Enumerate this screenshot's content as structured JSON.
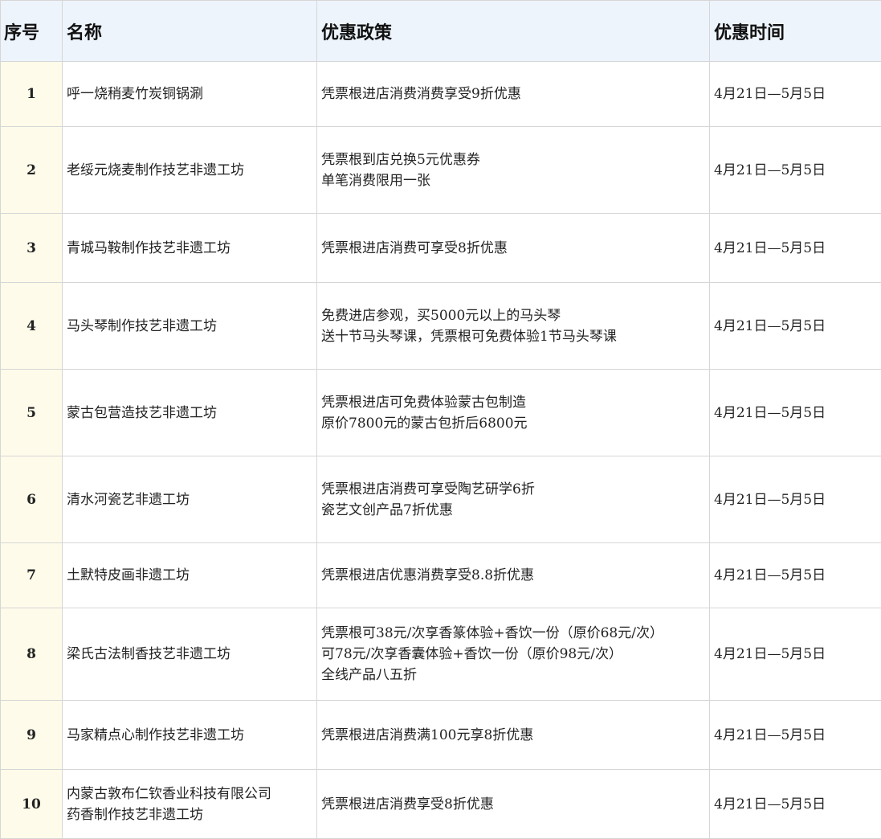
{
  "headers": [
    "序号",
    "名称",
    "优惠政策",
    "优惠时间"
  ],
  "rows": [
    {
      "no": "1",
      "name": "呼一烧稍麦竹炭铜锅涮",
      "policy": "凭票根进店消费消费享受9折优惠",
      "time": "4月21日—5月5日"
    },
    {
      "no": "2",
      "name": "老绥元烧麦制作技艺非遗工坊",
      "policy": "凭票根到店兑换5元优惠券\n单笔消费限用一张",
      "time": "4月21日—5月5日"
    },
    {
      "no": "3",
      "name": "青城马鞍制作技艺非遗工坊",
      "policy": "凭票根进店消费可享受8折优惠",
      "time": "4月21日—5月5日"
    },
    {
      "no": "4",
      "name": "马头琴制作技艺非遗工坊",
      "policy": "免费进店参观，买5000元以上的马头琴\n送十节马头琴课，凭票根可免费体验1节马头琴课",
      "time": "4月21日—5月5日"
    },
    {
      "no": "5",
      "name": "蒙古包营造技艺非遗工坊",
      "policy": "凭票根进店可免费体验蒙古包制造\n原价7800元的蒙古包折后6800元",
      "time": "4月21日—5月5日"
    },
    {
      "no": "6",
      "name": "清水河瓷艺非遗工坊",
      "policy": "凭票根进店消费可享受陶艺研学6折\n瓷艺文创产品7折优惠",
      "time": "4月21日—5月5日"
    },
    {
      "no": "7",
      "name": "土默特皮画非遗工坊",
      "policy": "凭票根进店优惠消费享受8.8折优惠",
      "time": "4月21日—5月5日"
    },
    {
      "no": "8",
      "name": "梁氏古法制香技艺非遗工坊",
      "policy": "凭票根可38元/次享香篆体验+香饮一份（原价68元/次）\n可78元/次享香囊体验+香饮一份（原价98元/次）\n全线产品八五折",
      "time": "4月21日—5月5日"
    },
    {
      "no": "9",
      "name": "马家精点心制作技艺非遗工坊",
      "policy": "凭票根进店消费满100元享8折优惠",
      "time": "4月21日—5月5日"
    },
    {
      "no": "10",
      "name": "内蒙古敦布仁钦香业科技有限公司\n药香制作技艺非遗工坊",
      "policy": "凭票根进店消费享受8折优惠",
      "time": "4月21日—5月5日"
    }
  ]
}
